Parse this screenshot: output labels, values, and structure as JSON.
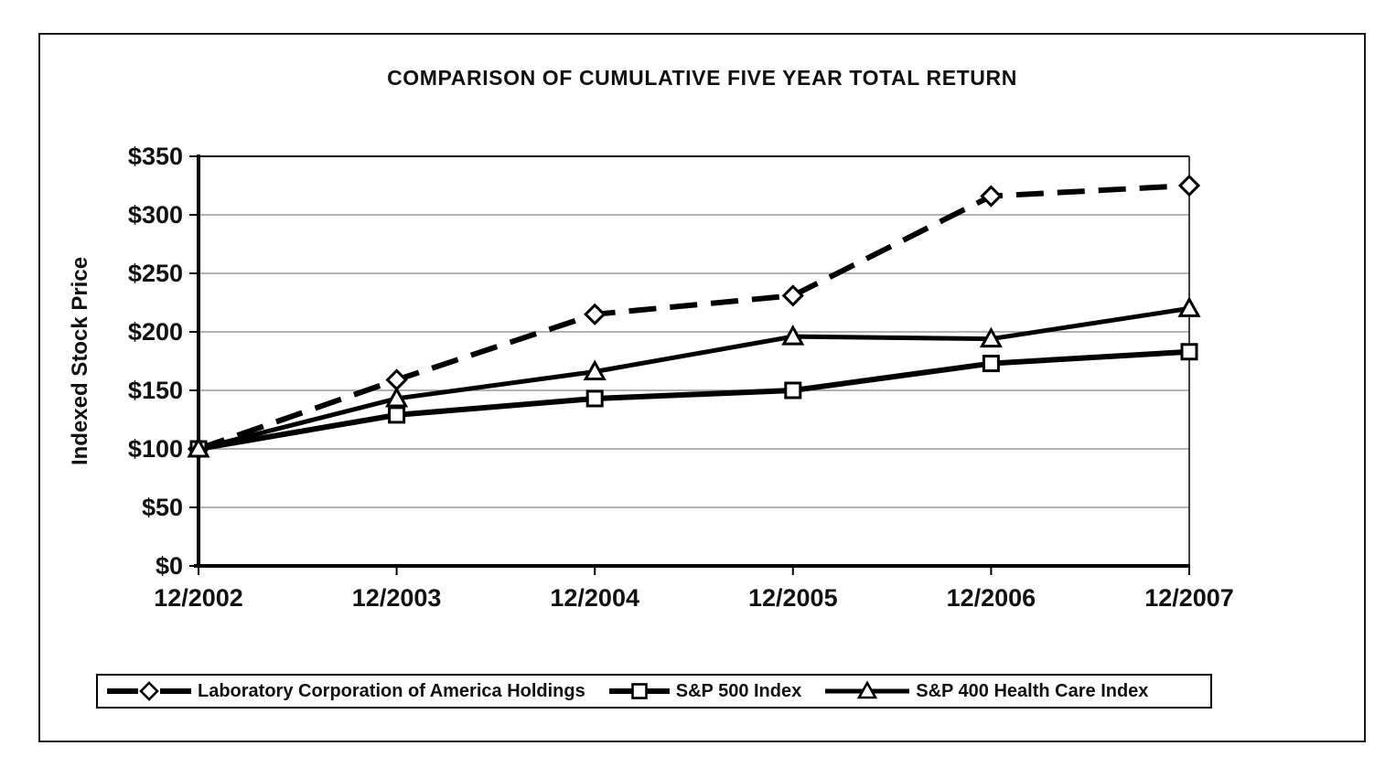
{
  "figure": {
    "background": "#ffffff",
    "border_color": "#1a1a1a"
  },
  "chart_data": {
    "type": "line",
    "title": "COMPARISON OF CUMULATIVE FIVE YEAR TOTAL RETURN",
    "xlabel": "",
    "ylabel": "Indexed Stock Price",
    "categories": [
      "12/2002",
      "12/2003",
      "12/2004",
      "12/2005",
      "12/2006",
      "12/2007"
    ],
    "y_tick_labels": [
      "$0",
      "$50",
      "$100",
      "$150",
      "$200",
      "$250",
      "$300",
      "$350"
    ],
    "ylim": [
      0,
      350
    ],
    "y_tick_step": 50,
    "grid": "horizontal",
    "legend_position": "bottom",
    "line_color": "#000000",
    "gridline_color": "#999999",
    "marker_fill": "#ffffff",
    "series": [
      {
        "id": "labcorp",
        "name": "Laboratory Corporation of America Holdings",
        "line_style": "dashed",
        "marker": "diamond",
        "values": [
          100,
          159,
          215,
          231,
          316,
          325
        ]
      },
      {
        "id": "sp-500",
        "name": "S&P 500 Index",
        "line_style": "solid",
        "marker": "square",
        "values": [
          100,
          129,
          143,
          150,
          173,
          183
        ]
      },
      {
        "id": "sp-400-health-care",
        "name": "S&P 400 Health Care Index",
        "line_style": "solid",
        "marker": "triangle",
        "values": [
          100,
          143,
          166,
          196,
          194,
          220
        ]
      }
    ]
  }
}
